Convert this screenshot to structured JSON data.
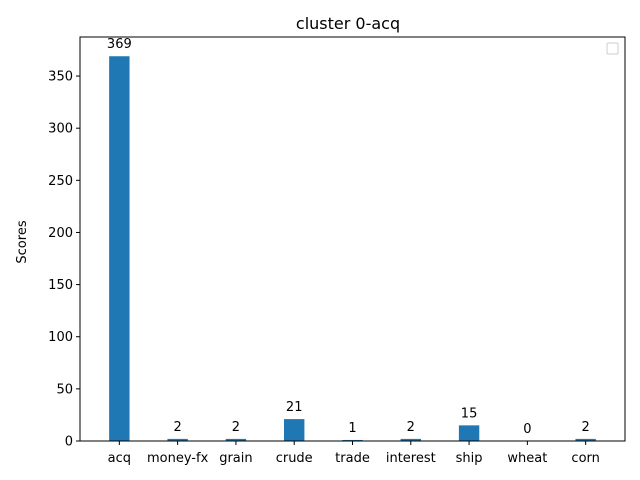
{
  "chart_data": {
    "type": "bar",
    "title": "cluster 0-acq",
    "xlabel": "",
    "ylabel": "Scores",
    "categories": [
      "acq",
      "money-fx",
      "grain",
      "crude",
      "trade",
      "interest",
      "ship",
      "wheat",
      "corn"
    ],
    "values": [
      369,
      2,
      2,
      21,
      1,
      2,
      15,
      0,
      2
    ],
    "value_labels": [
      "369",
      "2",
      "2",
      "21",
      "1",
      "2",
      "15",
      "0",
      "2"
    ],
    "ylim": [
      0,
      387.45
    ],
    "yticks": [
      0,
      50,
      100,
      150,
      200,
      250,
      300,
      350
    ],
    "ytick_labels": [
      "0",
      "50",
      "100",
      "150",
      "200",
      "250",
      "300",
      "350"
    ],
    "grid": false,
    "legend": {
      "visible": true,
      "placement": "top-right",
      "entries": []
    },
    "colors": {
      "bar": "#1f77b4",
      "axes": "#000000",
      "legend_border": "#cccccc"
    }
  }
}
